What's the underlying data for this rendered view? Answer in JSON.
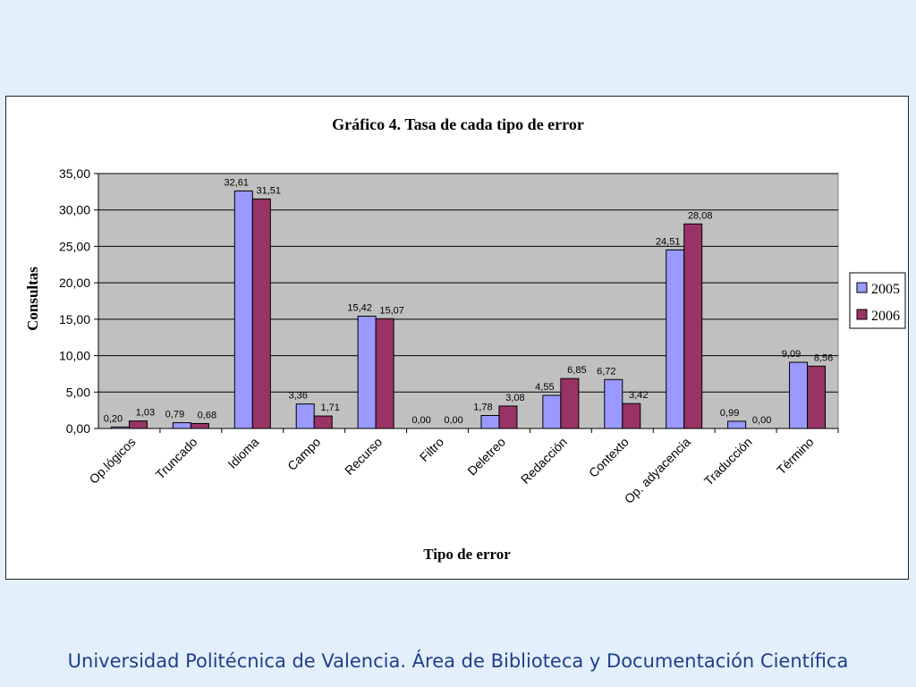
{
  "chart_data": {
    "type": "bar",
    "title": "Gráfico 4. Tasa de cada tipo de error",
    "xlabel": "Tipo de error",
    "ylabel": "Consultas",
    "ylim": [
      0,
      35
    ],
    "yticks": [
      "0,00",
      "5,00",
      "10,00",
      "15,00",
      "20,00",
      "25,00",
      "30,00",
      "35,00"
    ],
    "grid": true,
    "legend_position": "right",
    "categories": [
      "Op.lógicos",
      "Truncado",
      "Idioma",
      "Campo",
      "Recurso",
      "Filtro",
      "Deletreo",
      "Redacción",
      "Contexto",
      "Op. adyacencia",
      "Traducción",
      "Término"
    ],
    "series": [
      {
        "name": "2005",
        "color": "#9999ff",
        "values": [
          0.2,
          0.79,
          32.61,
          3.36,
          15.42,
          0.0,
          1.78,
          4.55,
          6.72,
          24.51,
          0.99,
          9.09
        ],
        "labels": [
          "0,20",
          "0,79",
          "32,61",
          "3,36",
          "15,42",
          "0,00",
          "1,78",
          "4,55",
          "6,72",
          "24,51",
          "0,99",
          "9,09"
        ]
      },
      {
        "name": "2006",
        "color": "#993366",
        "values": [
          1.03,
          0.68,
          31.51,
          1.71,
          15.07,
          0.0,
          3.08,
          6.85,
          3.42,
          28.08,
          0.0,
          8.56
        ],
        "labels": [
          "1,03",
          "0,68",
          "31,51",
          "1,71",
          "15,07",
          "0,00",
          "3,08",
          "6,85",
          "3,42",
          "28,08",
          "0,00",
          "8,56"
        ]
      }
    ],
    "plot_background": "#c0c0c0"
  },
  "footer": "Universidad Politécnica de Valencia. Área de Biblioteca y Documentación Científica"
}
